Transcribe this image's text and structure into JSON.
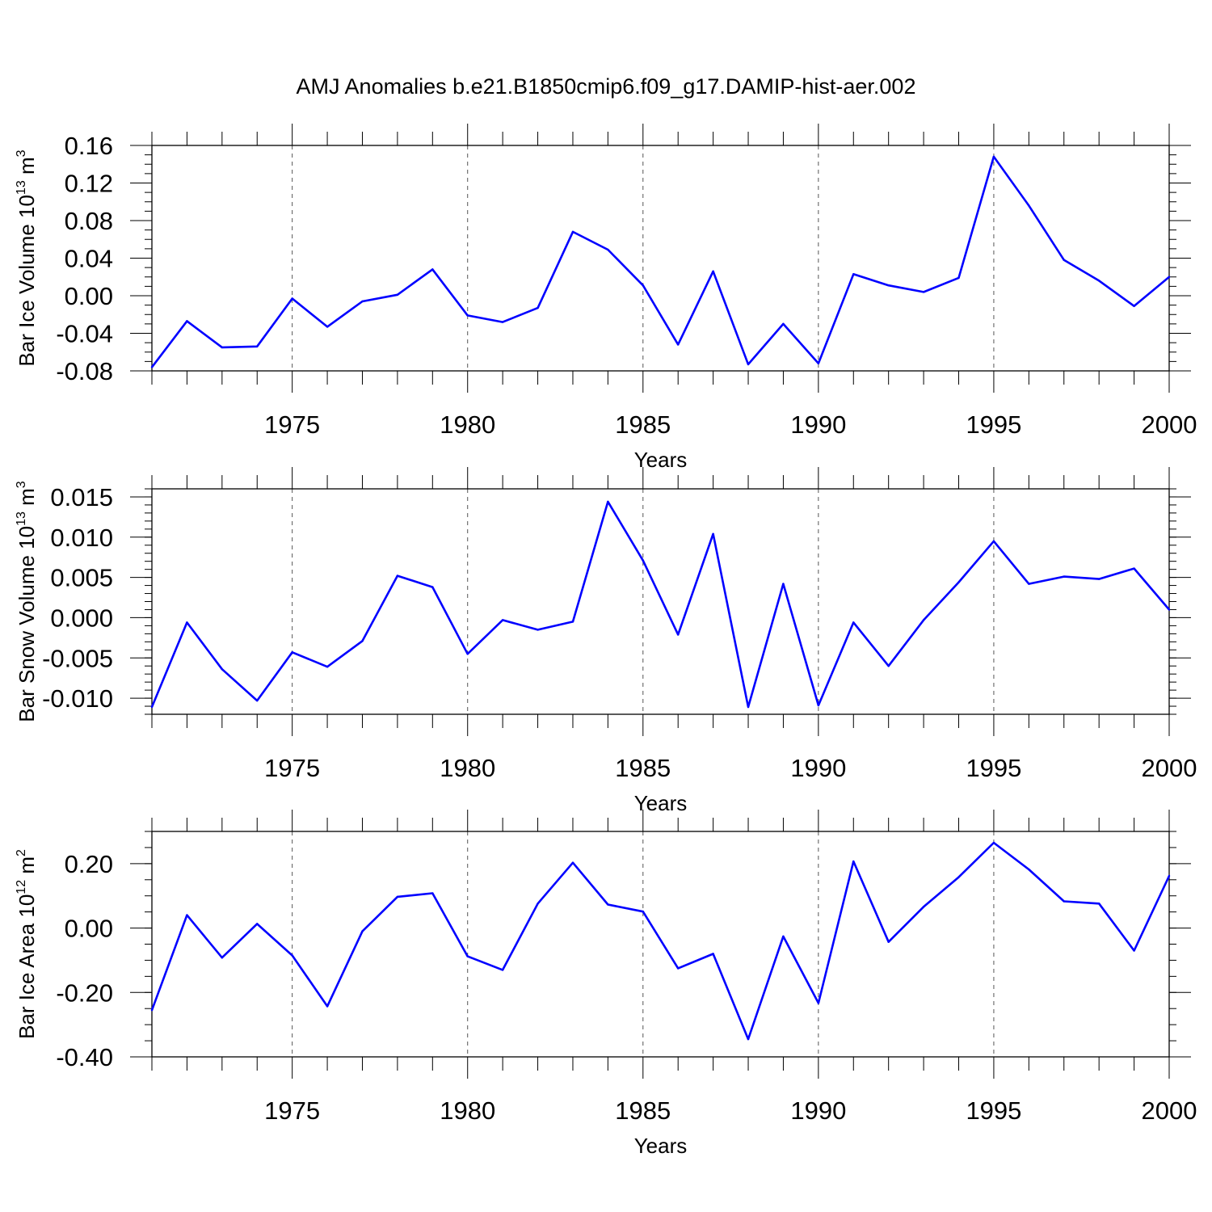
{
  "title": "AMJ Anomalies b.e21.B1850cmip6.f09_g17.DAMIP-hist-aer.002",
  "colors": {
    "line": "#0000ff",
    "axis": "#000000",
    "grid": "#555555"
  },
  "chart_data": [
    {
      "type": "line",
      "name": "bar-ice-volume",
      "ylabel": {
        "main": "Bar Ice Volume 10",
        "exp": "13",
        "mid": " m",
        "unit_exp": "3"
      },
      "xlabel": "Years",
      "xlim": [
        1971,
        2000
      ],
      "ylim": [
        -0.08,
        0.16
      ],
      "yticks": [
        -0.08,
        -0.04,
        0.0,
        0.04,
        0.08,
        0.12,
        0.16
      ],
      "yticklabels": [
        "-0.08",
        "-0.04",
        "0.00",
        "0.04",
        "0.08",
        "0.12",
        "0.16"
      ],
      "yminor_step": 0.01,
      "xticks": [
        1975,
        1980,
        1985,
        1990,
        1995,
        2000
      ],
      "xticklabels": [
        "1975",
        "1980",
        "1985",
        "1990",
        "1995",
        "2000"
      ],
      "grid_x": [
        1975,
        1980,
        1985,
        1990,
        1995
      ],
      "x": [
        1971,
        1972,
        1973,
        1974,
        1975,
        1976,
        1977,
        1978,
        1979,
        1980,
        1981,
        1982,
        1983,
        1984,
        1985,
        1986,
        1987,
        1988,
        1989,
        1990,
        1991,
        1992,
        1993,
        1994,
        1995,
        1996,
        1997,
        1998,
        1999,
        2000
      ],
      "y": [
        -0.076,
        -0.027,
        -0.055,
        -0.054,
        -0.003,
        -0.033,
        -0.006,
        0.001,
        0.028,
        -0.021,
        -0.028,
        -0.013,
        0.068,
        0.049,
        0.011,
        -0.052,
        0.026,
        -0.073,
        -0.03,
        -0.072,
        0.023,
        0.011,
        0.004,
        0.019,
        0.148,
        0.096,
        0.038,
        0.016,
        -0.011,
        0.02
      ]
    },
    {
      "type": "line",
      "name": "bar-snow-volume",
      "ylabel": {
        "main": "Bar Snow Volume 10",
        "exp": "13",
        "mid": " m",
        "unit_exp": "3"
      },
      "xlabel": "Years",
      "xlim": [
        1971,
        2000
      ],
      "ylim": [
        -0.012,
        0.016
      ],
      "yticks": [
        -0.01,
        -0.005,
        0.0,
        0.005,
        0.01,
        0.015
      ],
      "yticklabels": [
        "-0.010",
        "-0.005",
        "0.000",
        "0.005",
        "0.010",
        "0.015"
      ],
      "yminor_step": 0.001,
      "xticks": [
        1975,
        1980,
        1985,
        1990,
        1995,
        2000
      ],
      "xticklabels": [
        "1975",
        "1980",
        "1985",
        "1990",
        "1995",
        "2000"
      ],
      "grid_x": [
        1975,
        1980,
        1985,
        1990,
        1995
      ],
      "x": [
        1971,
        1972,
        1973,
        1974,
        1975,
        1976,
        1977,
        1978,
        1979,
        1980,
        1981,
        1982,
        1983,
        1984,
        1985,
        1986,
        1987,
        1988,
        1989,
        1990,
        1991,
        1992,
        1993,
        1994,
        1995,
        1996,
        1997,
        1998,
        1999,
        2000
      ],
      "y": [
        -0.0111,
        -0.0006,
        -0.0064,
        -0.0103,
        -0.0043,
        -0.0061,
        -0.0029,
        0.0052,
        0.0038,
        -0.0045,
        -0.0003,
        -0.0015,
        -0.0005,
        0.0144,
        0.0071,
        -0.0021,
        0.0104,
        -0.0111,
        0.0042,
        -0.0109,
        -0.0006,
        -0.006,
        -0.0003,
        0.0044,
        0.0095,
        0.0042,
        0.0051,
        0.0048,
        0.0061,
        0.001
      ]
    },
    {
      "type": "line",
      "name": "bar-ice-area",
      "ylabel": {
        "main": "Bar Ice Area 10",
        "exp": "12",
        "mid": " m",
        "unit_exp": "2"
      },
      "xlabel": "Years",
      "xlim": [
        1971,
        2000
      ],
      "ylim": [
        -0.4,
        0.3
      ],
      "yticks": [
        -0.4,
        -0.2,
        0.0,
        0.2
      ],
      "yticklabels": [
        "-0.40",
        "-0.20",
        "0.00",
        "0.20"
      ],
      "yminor_step": 0.05,
      "xticks": [
        1975,
        1980,
        1985,
        1990,
        1995,
        2000
      ],
      "xticklabels": [
        "1975",
        "1980",
        "1985",
        "1990",
        "1995",
        "2000"
      ],
      "grid_x": [
        1975,
        1980,
        1985,
        1990,
        1995
      ],
      "x": [
        1971,
        1972,
        1973,
        1974,
        1975,
        1976,
        1977,
        1978,
        1979,
        1980,
        1981,
        1982,
        1983,
        1984,
        1985,
        1986,
        1987,
        1988,
        1989,
        1990,
        1991,
        1992,
        1993,
        1994,
        1995,
        1996,
        1997,
        1998,
        1999,
        2000
      ],
      "y": [
        -0.255,
        0.04,
        -0.092,
        0.013,
        -0.085,
        -0.243,
        -0.01,
        0.097,
        0.108,
        -0.088,
        -0.13,
        0.076,
        0.203,
        0.073,
        0.051,
        -0.125,
        -0.08,
        -0.345,
        -0.026,
        -0.233,
        0.207,
        -0.043,
        0.066,
        0.158,
        0.265,
        0.182,
        0.083,
        0.076,
        -0.07,
        0.162
      ]
    }
  ]
}
